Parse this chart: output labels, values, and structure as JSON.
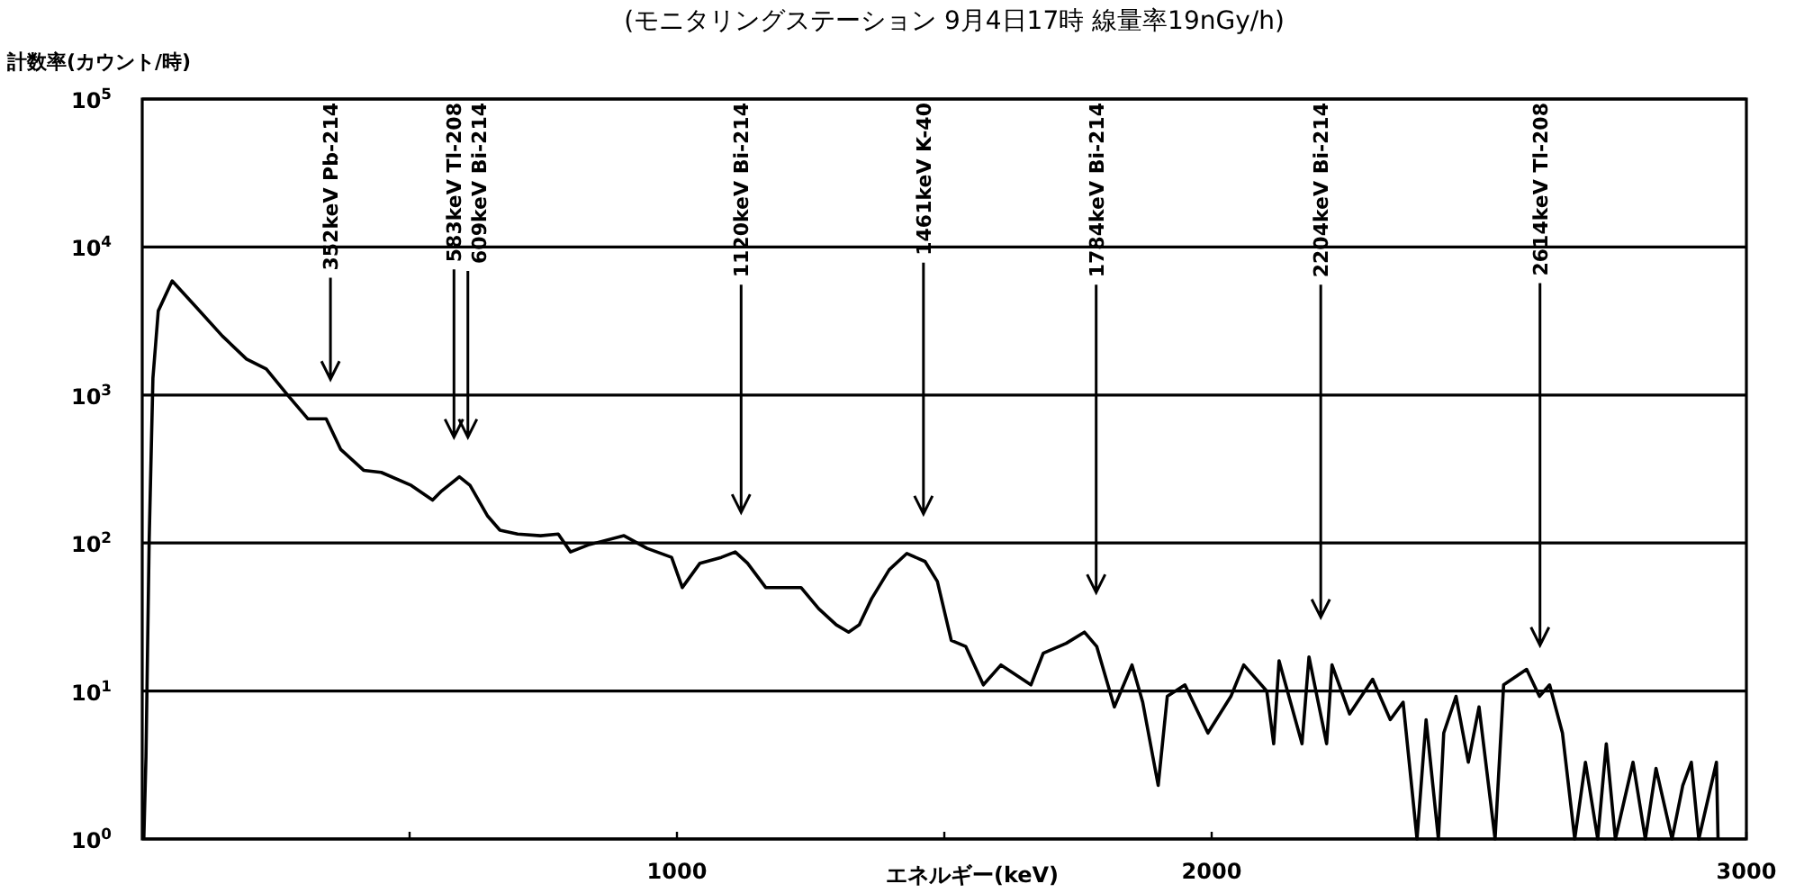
{
  "chart_data": {
    "type": "line",
    "title": "(モニタリングステーション 9月4日17時 線量率19nGy/h)",
    "ylabel": "計数率(カウント/時)",
    "xlabel": "エネルギー(keV)",
    "log": "y",
    "grid": "y",
    "xlim": [
      0,
      3000
    ],
    "ylim": [
      1,
      100000
    ],
    "xticks": [
      {
        "value": 500,
        "label": null
      },
      1000,
      {
        "value": 1500,
        "label": null
      },
      2000,
      3000
    ],
    "yticks": [
      {
        "value": 1,
        "label": "10$^{0}$"
      },
      {
        "value": 10,
        "label": "10$^{1}$"
      },
      {
        "value": 100,
        "label": "10$^{2}$"
      },
      {
        "value": 1000,
        "label": "10$^{3}$"
      },
      {
        "value": 10000,
        "label": "10$^{4}$"
      },
      {
        "value": 100000,
        "label": "10$^{5}$"
      }
    ],
    "x": [
      3,
      7,
      13,
      20,
      30,
      56,
      96,
      150,
      195,
      232,
      272,
      310,
      344,
      371,
      414,
      447,
      503,
      543,
      560,
      593,
      613,
      646,
      669,
      702,
      745,
      778,
      801,
      834,
      901,
      944,
      990,
      1010,
      1043,
      1083,
      1109,
      1132,
      1166,
      1232,
      1265,
      1298,
      1321,
      1341,
      1364,
      1397,
      1430,
      1464,
      1487,
      1513,
      1540,
      1573,
      1606,
      1662,
      1685,
      1728,
      1762,
      1785,
      1818,
      1851,
      1871,
      1900,
      1917,
      1950,
      1993,
      2036,
      2060,
      2103,
      2116,
      2126,
      2169,
      2182,
      2215,
      2225,
      2258,
      2301,
      2334,
      2358,
      2384,
      2401,
      2424,
      2434,
      2457,
      2480,
      2500,
      2530,
      2546,
      2589,
      2613,
      2632,
      2656,
      2679,
      2699,
      2722,
      2738,
      2755,
      2788,
      2811,
      2831,
      2861,
      2881,
      2897,
      2911,
      2944,
      2947
    ],
    "series": [
      {
        "color": "#000000",
        "values": [
          1,
          3.6,
          105,
          1300,
          3700,
          5900,
          4100,
          2500,
          1750,
          1500,
          1000,
          690,
          690,
          430,
          310,
          300,
          245,
          195,
          225,
          280,
          245,
          152,
          122,
          115,
          112,
          115,
          87,
          97,
          112,
          92,
          80,
          50,
          73,
          80,
          87,
          73,
          50,
          50,
          36,
          28,
          25,
          28,
          42,
          66,
          85,
          75,
          55,
          22,
          20,
          11,
          15,
          11,
          18,
          21,
          25,
          20,
          7.8,
          15,
          8.4,
          2.3,
          9.2,
          11,
          5.2,
          9.2,
          15,
          10,
          4.4,
          16,
          4.4,
          17,
          4.4,
          15,
          7,
          12,
          6.4,
          8.4,
          1,
          6.4,
          1,
          5.2,
          9.2,
          3.3,
          7.8,
          1,
          11,
          14,
          9.2,
          11,
          5.2,
          1,
          3.3,
          1,
          4.4,
          1,
          3.3,
          1,
          3,
          1,
          2.3,
          3.3,
          1,
          3.3,
          1
        ]
      }
    ],
    "ref_lines": [
      {
        "axis": "x",
        "value": 352,
        "label": "352keV Pb-214"
      },
      {
        "axis": "x",
        "value": 583,
        "label": "583keV Tl-208"
      },
      {
        "axis": "x",
        "value": 609,
        "label": "609keV Bi-214"
      },
      {
        "axis": "x",
        "value": 1120,
        "label": "1120keV  Bi-214"
      },
      {
        "axis": "x",
        "value": 1461,
        "label": "1461keV K-40"
      },
      {
        "axis": "x",
        "value": 1784,
        "label": "1784keV Bi-214"
      },
      {
        "axis": "x",
        "value": 2204,
        "label": "2204keV Bi-214"
      },
      {
        "axis": "x",
        "value": 2614,
        "label": "2614keV Tl-208"
      }
    ]
  }
}
